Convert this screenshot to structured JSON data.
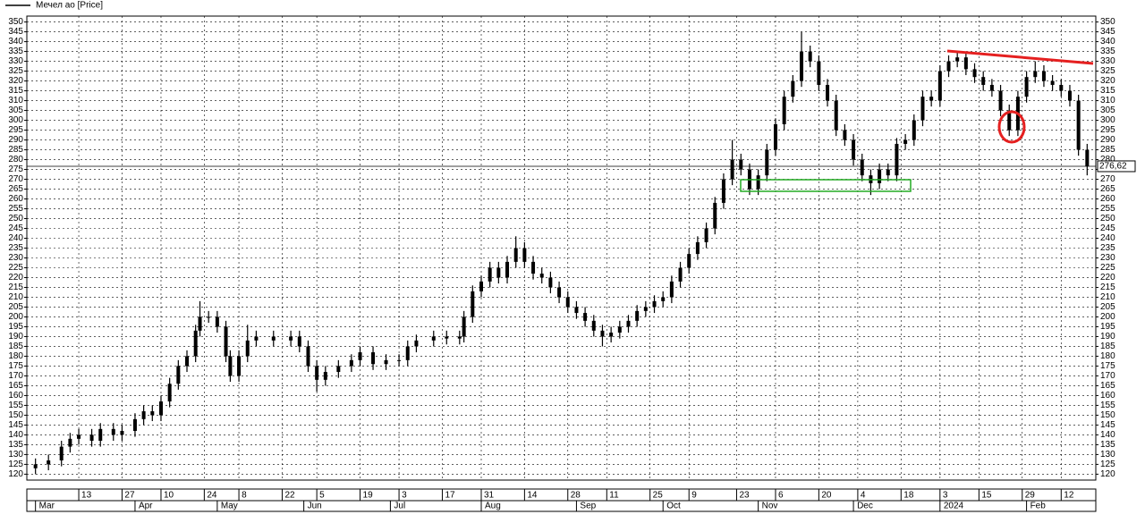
{
  "chart_data": {
    "type": "candlestick",
    "series": [
      {
        "name": "Мечел ао [Price]",
        "color": "#000000",
        "x": [
          0,
          3,
          6,
          8,
          10,
          13,
          15,
          18,
          20,
          23,
          25,
          27,
          29,
          31,
          33,
          35,
          37,
          38,
          40,
          42,
          44,
          45,
          47,
          49,
          51,
          55,
          59,
          61,
          63,
          65,
          67,
          70,
          73,
          75,
          78,
          81,
          84,
          86,
          88,
          92,
          95,
          98,
          99,
          101,
          103,
          105,
          107,
          109,
          111,
          113,
          115,
          117,
          119,
          121,
          123,
          125,
          127,
          129,
          131,
          133,
          135,
          137,
          139,
          141,
          143,
          145,
          147,
          149,
          151,
          153,
          155,
          157,
          159,
          161,
          163,
          165,
          167,
          169,
          171,
          173,
          175,
          177,
          179,
          181,
          183,
          185,
          187,
          189,
          191,
          193,
          195,
          197,
          199,
          201,
          203,
          205,
          207,
          209,
          211,
          213,
          215,
          217,
          219,
          221,
          223,
          225,
          227,
          229,
          231,
          233,
          235,
          237,
          239,
          241,
          243
        ],
        "open": [
          123,
          125,
          127,
          134,
          138,
          140,
          137,
          143,
          140,
          142,
          148,
          152,
          150,
          157,
          166,
          175,
          180,
          193,
          200,
          200,
          195,
          180,
          170,
          180,
          188,
          190,
          188,
          190,
          185,
          175,
          168,
          172,
          175,
          178,
          182,
          176,
          178,
          178,
          185,
          188,
          190,
          189,
          190,
          200,
          213,
          218,
          225,
          220,
          228,
          235,
          228,
          222,
          220,
          215,
          210,
          205,
          202,
          198,
          193,
          190,
          192,
          195,
          198,
          203,
          205,
          208,
          210,
          218,
          225,
          232,
          238,
          245,
          258,
          270,
          280,
          275,
          265,
          272,
          285,
          298,
          312,
          320,
          335,
          330,
          318,
          310,
          295,
          290,
          280,
          272,
          268,
          275,
          272,
          288,
          290,
          300,
          312,
          310,
          325,
          330,
          332,
          326,
          322,
          318,
          315,
          305,
          295,
          312,
          322,
          325,
          320,
          318,
          315,
          310,
          285
        ],
        "high": [
          128,
          130,
          137,
          141,
          143,
          143,
          146,
          146,
          145,
          151,
          155,
          155,
          160,
          169,
          178,
          183,
          196,
          208,
          203,
          203,
          198,
          183,
          183,
          196,
          193,
          193,
          193,
          193,
          188,
          178,
          175,
          178,
          181,
          185,
          185,
          181,
          181,
          188,
          191,
          193,
          193,
          193,
          203,
          216,
          221,
          228,
          228,
          231,
          241,
          238,
          231,
          225,
          223,
          218,
          213,
          208,
          205,
          201,
          196,
          195,
          198,
          201,
          206,
          208,
          211,
          213,
          221,
          228,
          235,
          241,
          248,
          261,
          273,
          290,
          283,
          278,
          275,
          288,
          301,
          315,
          323,
          345,
          338,
          333,
          321,
          313,
          298,
          293,
          283,
          275,
          278,
          278,
          291,
          293,
          303,
          315,
          315,
          328,
          333,
          335,
          335,
          329,
          325,
          321,
          318,
          308,
          315,
          325,
          330,
          328,
          323,
          321,
          318,
          313,
          288
        ],
        "low": [
          120,
          122,
          124,
          131,
          135,
          134,
          134,
          137,
          137,
          139,
          145,
          147,
          147,
          154,
          163,
          172,
          177,
          190,
          197,
          192,
          177,
          167,
          167,
          177,
          185,
          185,
          185,
          182,
          172,
          162,
          165,
          169,
          172,
          175,
          173,
          173,
          175,
          175,
          182,
          185,
          186,
          186,
          187,
          197,
          210,
          215,
          217,
          217,
          225,
          225,
          219,
          217,
          212,
          207,
          202,
          199,
          195,
          190,
          185,
          187,
          189,
          192,
          195,
          200,
          202,
          205,
          207,
          215,
          222,
          229,
          235,
          242,
          255,
          267,
          272,
          262,
          262,
          269,
          282,
          295,
          309,
          317,
          327,
          315,
          307,
          292,
          287,
          277,
          269,
          262,
          265,
          269,
          269,
          285,
          287,
          297,
          307,
          307,
          322,
          327,
          323,
          319,
          315,
          312,
          302,
          292,
          292,
          309,
          319,
          317,
          315,
          312,
          307,
          282,
          272
        ],
        "close": [
          125,
          127,
          134,
          138,
          140,
          137,
          143,
          140,
          142,
          148,
          152,
          150,
          157,
          166,
          175,
          180,
          193,
          200,
          200,
          195,
          180,
          170,
          180,
          188,
          190,
          188,
          190,
          185,
          175,
          168,
          172,
          175,
          178,
          182,
          176,
          178,
          178,
          185,
          188,
          190,
          189,
          190,
          200,
          213,
          218,
          225,
          220,
          228,
          235,
          228,
          222,
          220,
          215,
          210,
          205,
          202,
          198,
          193,
          190,
          192,
          195,
          198,
          203,
          205,
          208,
          210,
          218,
          225,
          232,
          238,
          245,
          258,
          270,
          280,
          275,
          265,
          272,
          285,
          298,
          312,
          320,
          335,
          330,
          318,
          310,
          295,
          290,
          280,
          272,
          268,
          275,
          272,
          288,
          290,
          300,
          312,
          310,
          325,
          330,
          332,
          326,
          322,
          318,
          315,
          305,
          295,
          312,
          322,
          325,
          320,
          318,
          315,
          310,
          285,
          276.62
        ]
      }
    ],
    "last_price_label": "276,62",
    "xlim": [
      -2,
      245
    ],
    "xticks": [
      {
        "value": 10,
        "label": "13"
      },
      {
        "value": 20,
        "label": "27"
      },
      {
        "value": 29,
        "label": "10"
      },
      {
        "value": 39,
        "label": "24"
      },
      {
        "value": 47,
        "label": "8"
      },
      {
        "value": 57,
        "label": "22"
      },
      {
        "value": 65,
        "label": "5"
      },
      {
        "value": 75,
        "label": "19"
      },
      {
        "value": 84,
        "label": "3"
      },
      {
        "value": 94,
        "label": "17"
      },
      {
        "value": 103,
        "label": "31"
      },
      {
        "value": 113,
        "label": "14"
      },
      {
        "value": 123,
        "label": "28"
      },
      {
        "value": 132,
        "label": "11"
      },
      {
        "value": 142,
        "label": "25"
      },
      {
        "value": 151,
        "label": "9"
      },
      {
        "value": 162,
        "label": "23"
      },
      {
        "value": 171,
        "label": "6"
      },
      {
        "value": 181,
        "label": "20"
      },
      {
        "value": 190,
        "label": "4"
      },
      {
        "value": 200,
        "label": "18"
      },
      {
        "value": 209,
        "label": "3"
      },
      {
        "value": 218,
        "label": "15"
      },
      {
        "value": 228,
        "label": "29"
      },
      {
        "value": 237,
        "label": "12"
      }
    ],
    "month_ticks": [
      {
        "value": 0,
        "label": "Mar"
      },
      {
        "value": 23,
        "label": "Apr"
      },
      {
        "value": 42,
        "label": "May"
      },
      {
        "value": 62,
        "label": "Jun"
      },
      {
        "value": 82,
        "label": "Jul"
      },
      {
        "value": 103,
        "label": "Aug"
      },
      {
        "value": 125,
        "label": "Sep"
      },
      {
        "value": 145,
        "label": "Oct"
      },
      {
        "value": 167,
        "label": "Nov"
      },
      {
        "value": 189,
        "label": "Dec"
      },
      {
        "value": 209,
        "label": "2024"
      },
      {
        "value": 229,
        "label": "Feb"
      }
    ],
    "ylim": [
      117,
      353
    ],
    "yticks": [
      120,
      125,
      130,
      135,
      140,
      145,
      150,
      155,
      160,
      165,
      170,
      175,
      180,
      185,
      190,
      195,
      200,
      205,
      210,
      215,
      220,
      225,
      230,
      235,
      240,
      245,
      250,
      255,
      260,
      265,
      270,
      275,
      280,
      285,
      290,
      295,
      300,
      305,
      310,
      315,
      320,
      325,
      330,
      335,
      340,
      345,
      350
    ],
    "grid": true
  }
}
